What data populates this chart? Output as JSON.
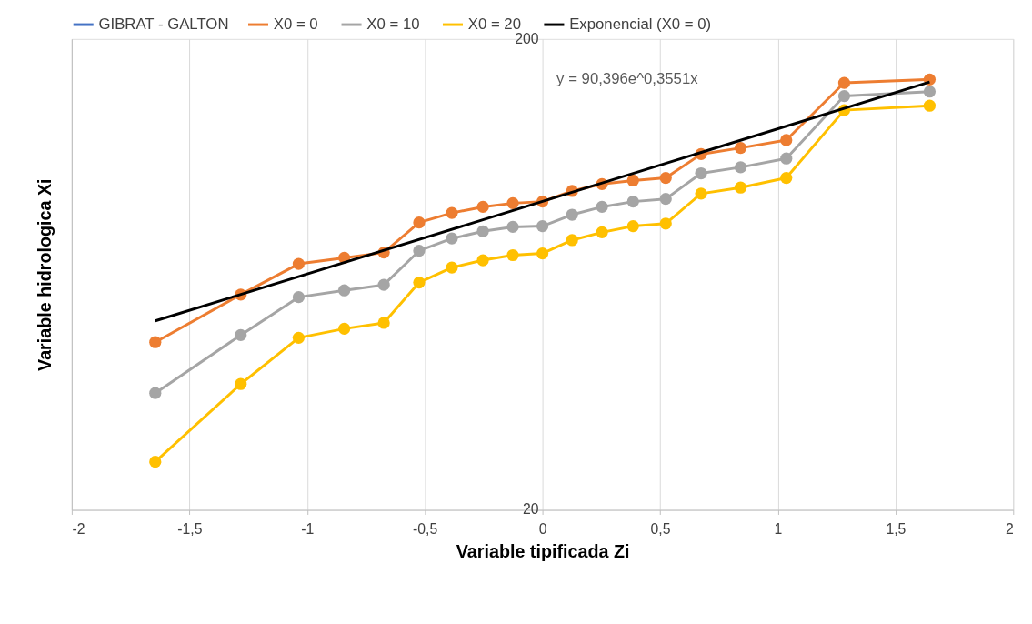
{
  "chart_data": {
    "type": "line",
    "xlabel": "Variable tipificada Zi",
    "ylabel": "Variable hidrologica Xi",
    "x": [
      -1.645,
      -1.282,
      -1.036,
      -0.842,
      -0.674,
      -0.524,
      -0.385,
      -0.253,
      -0.126,
      0,
      0.126,
      0.253,
      0.385,
      0.524,
      0.674,
      0.842,
      1.036,
      1.282,
      1.645
    ],
    "series": [
      {
        "name": "GIBRAT - GALTON",
        "color": "#4472c4",
        "values": [
          null,
          null,
          null,
          null,
          null,
          null,
          null,
          null,
          null,
          null,
          null,
          null,
          null,
          null,
          null,
          null,
          null,
          null,
          null
        ]
      },
      {
        "name": "X0 =  0",
        "color": "#ed7d31",
        "values": [
          45.4,
          57.3,
          66.6,
          68.6,
          70.4,
          81.5,
          85.4,
          88.0,
          89.6,
          90.3,
          95.1,
          98.4,
          100.1,
          101.4,
          113.9,
          117.4,
          122.0,
          161.4,
          164.1
        ]
      },
      {
        "name": "X0 =  10",
        "color": "#a5a5a5",
        "values": [
          35.4,
          47.0,
          56.6,
          58.5,
          60.1,
          71.0,
          75.4,
          78.1,
          79.8,
          80.1,
          84.7,
          88.0,
          90.3,
          91.5,
          103.7,
          106.8,
          111.5,
          151.3,
          154.6
        ]
      },
      {
        "name": "X0 =  20",
        "color": "#ffc000",
        "values": [
          25.3,
          37.0,
          46.4,
          48.5,
          49.9,
          60.8,
          65.4,
          67.8,
          69.5,
          70.1,
          74.8,
          77.7,
          80.1,
          81.1,
          93.9,
          96.7,
          101.4,
          141.2,
          144.3
        ]
      },
      {
        "name": "Exponencial (X0 =  0)",
        "color": "#000000",
        "marker": "none",
        "x": [
          -1.645,
          1.645
        ],
        "values": [
          50.4,
          162.1
        ]
      }
    ],
    "annotations": [
      "y = 90,396e^0,3551x"
    ],
    "xlim": [
      -2,
      2
    ],
    "xticks": [
      {
        "value": -2,
        "label": "-2"
      },
      {
        "value": -1.5,
        "label": "-1,5"
      },
      {
        "value": -1,
        "label": "-1"
      },
      {
        "value": -0.5,
        "label": "-0,5"
      },
      {
        "value": 0,
        "label": "0"
      },
      {
        "value": 0.5,
        "label": "0,5"
      },
      {
        "value": 1,
        "label": "1"
      },
      {
        "value": 1.5,
        "label": "1,5"
      },
      {
        "value": 2,
        "label": "2"
      }
    ],
    "ylim": [
      20,
      200
    ],
    "yticks": [
      20,
      200
    ],
    "log": true,
    "grid": "x",
    "legend": "top",
    "marker": "circle",
    "line_style": "solid"
  }
}
